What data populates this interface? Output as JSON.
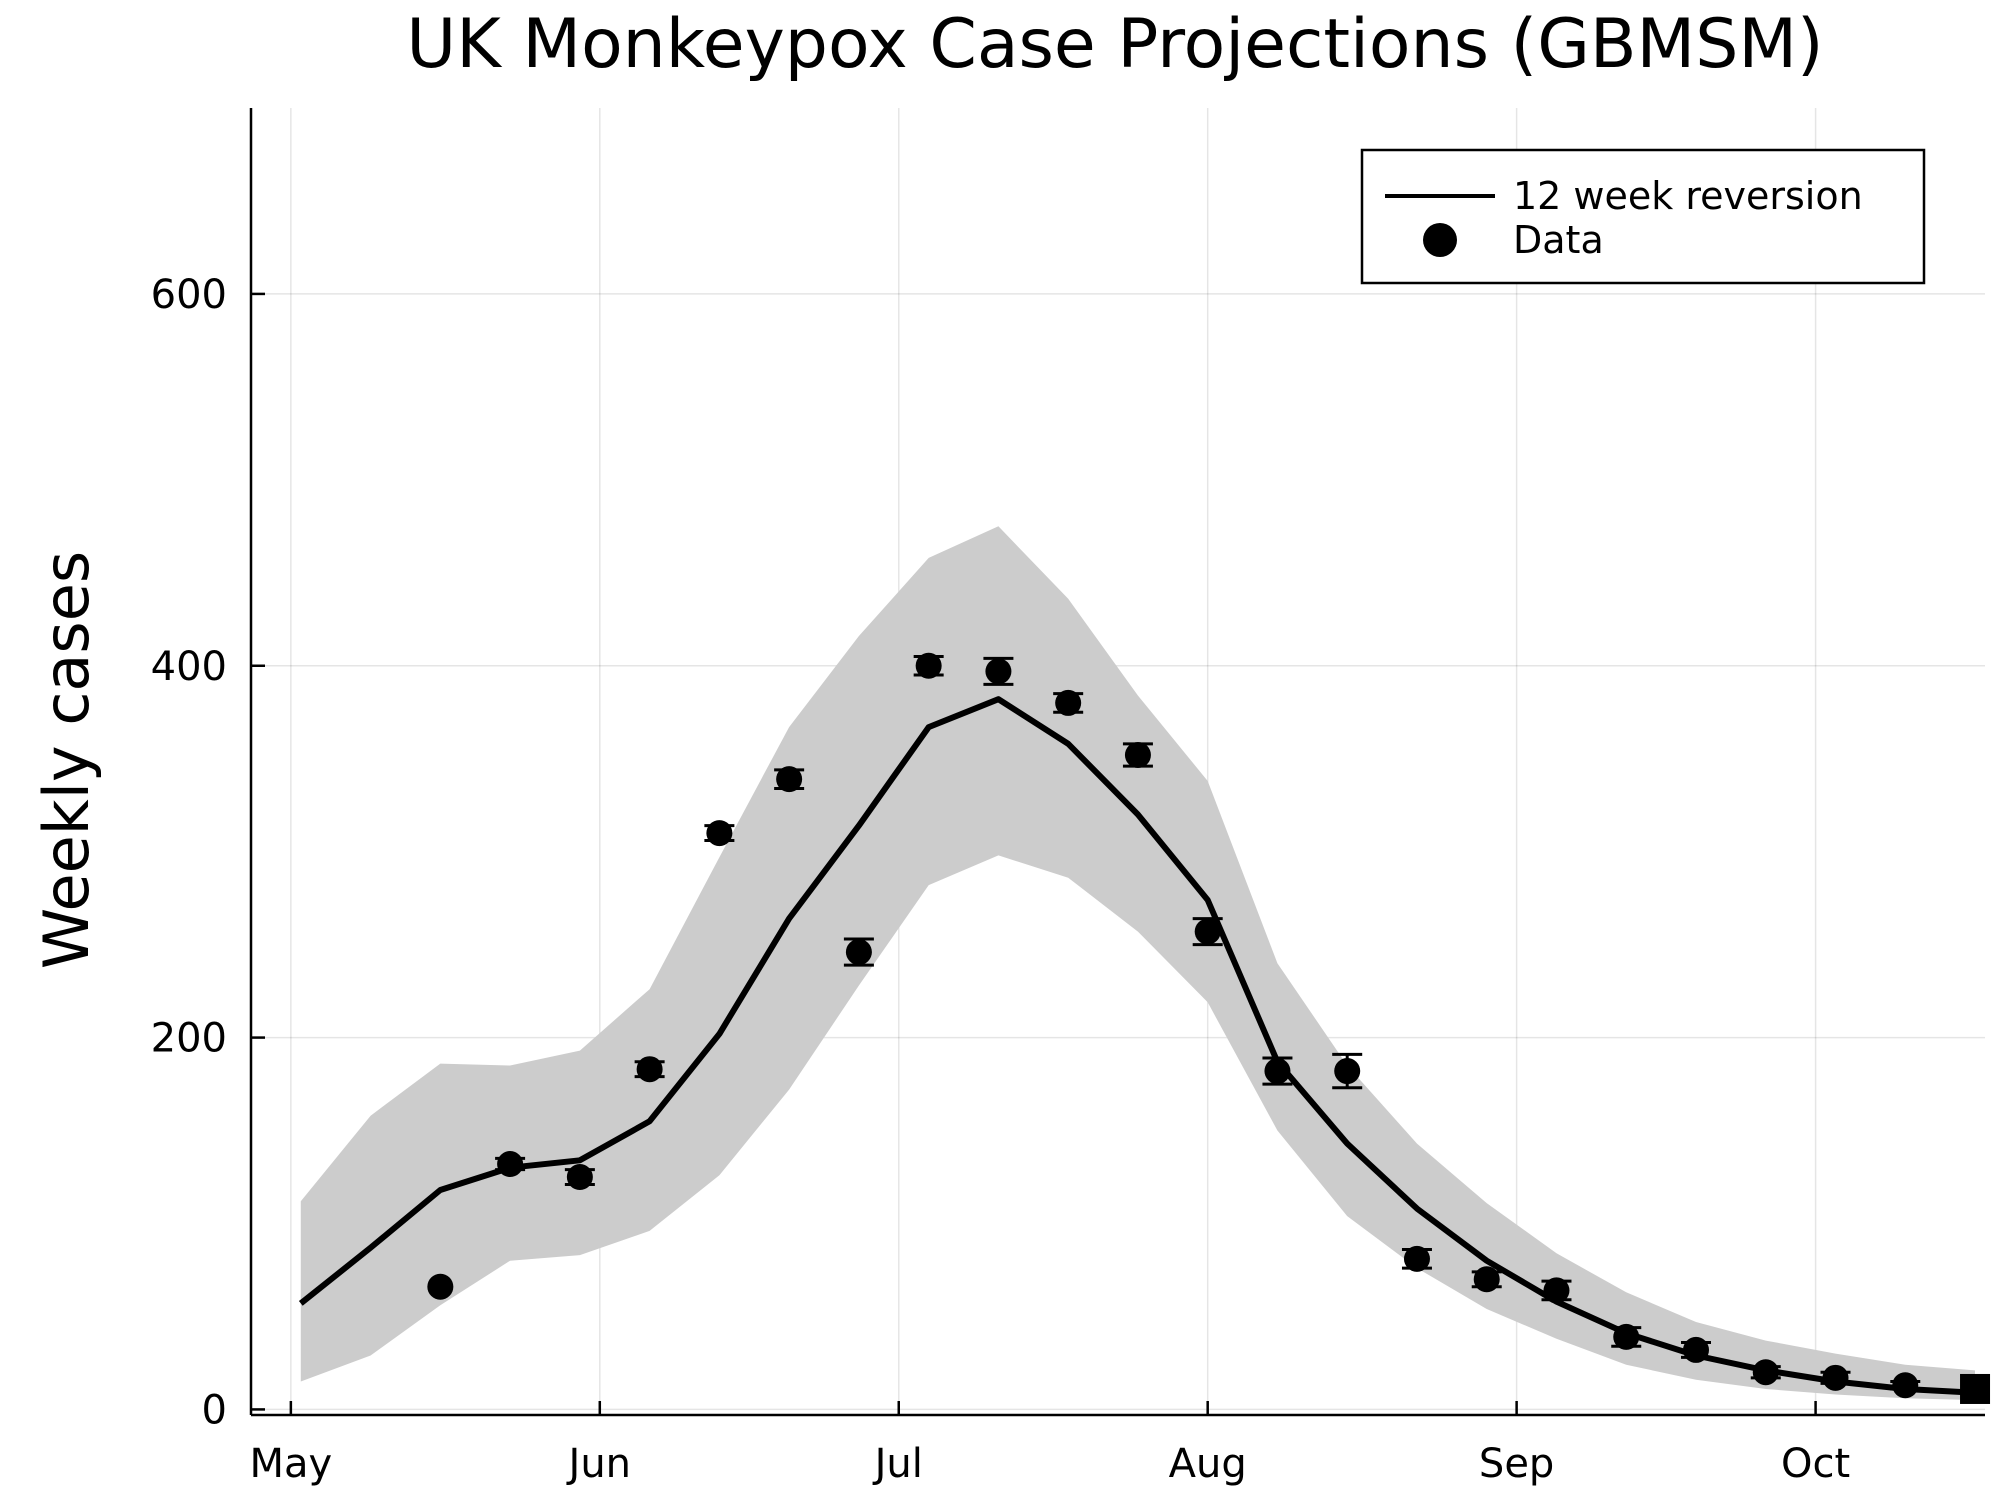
{
  "chart_data": {
    "type": "line",
    "title": "UK Monkeypox Case Projections (GBMSM)",
    "xlabel": "",
    "ylabel": "Weekly cases",
    "x_ticks": [
      {
        "label": "May",
        "day": 0
      },
      {
        "label": "Jun",
        "day": 31
      },
      {
        "label": "Jul",
        "day": 61
      },
      {
        "label": "Aug",
        "day": 92
      },
      {
        "label": "Sep",
        "day": 123
      },
      {
        "label": "Oct",
        "day": 153
      }
    ],
    "y_ticks": [
      0,
      200,
      400,
      600
    ],
    "xlim": [
      -4,
      170
    ],
    "ylim": [
      -3,
      700
    ],
    "grid": true,
    "legend": {
      "position": "top-right",
      "entries": [
        {
          "label": "12 week reversion",
          "marker": "line"
        },
        {
          "label": "Data",
          "marker": "circle"
        }
      ]
    },
    "projection": {
      "name": "12 week reversion",
      "x": [
        1,
        8,
        15,
        22,
        29,
        36,
        43,
        50,
        57,
        64,
        71,
        78,
        85,
        92,
        99,
        106,
        113,
        120,
        127,
        134,
        141,
        148,
        155,
        162,
        169
      ],
      "y": [
        57,
        87,
        118,
        130,
        134,
        155,
        202,
        264,
        314,
        367,
        382,
        358,
        320,
        274,
        187,
        143,
        108,
        80,
        58,
        41,
        29,
        21,
        15,
        11,
        9
      ],
      "lower": [
        15,
        29,
        56,
        80,
        83,
        96,
        126,
        172,
        228,
        282,
        298,
        286,
        257,
        219,
        150,
        104,
        76,
        54,
        38,
        24,
        16,
        11,
        8,
        6,
        5
      ],
      "upper": [
        112,
        158,
        186,
        185,
        193,
        226,
        297,
        367,
        416,
        458,
        475,
        436,
        384,
        338,
        240,
        185,
        143,
        111,
        84,
        63,
        47,
        37,
        30,
        24,
        21
      ]
    },
    "data_points": {
      "name": "Data",
      "x": [
        15,
        22,
        29,
        36,
        43,
        50,
        57,
        64,
        71,
        78,
        85,
        92,
        99,
        106,
        113,
        120,
        127,
        134,
        141,
        148,
        155,
        162,
        169
      ],
      "y": [
        66,
        132,
        125,
        183,
        310,
        339,
        246,
        400,
        397,
        380,
        352,
        257,
        182,
        182,
        81,
        70,
        64,
        39,
        32,
        20,
        17,
        13,
        11
      ],
      "err": [
        0,
        3,
        4,
        4,
        4,
        5,
        7,
        5,
        7,
        5,
        6,
        7,
        7,
        9,
        5,
        4,
        5,
        5,
        4,
        3,
        3,
        2,
        0
      ]
    },
    "last_point": {
      "x": 169,
      "y": 11,
      "marker": "square"
    }
  }
}
